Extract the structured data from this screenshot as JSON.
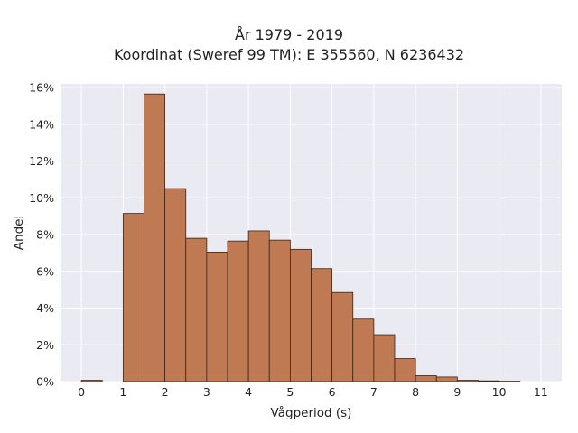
{
  "chart_data": {
    "type": "bar",
    "title": "År 1979 - 2019",
    "subtitle": "Koordinat (Sweref 99 TM): E 355560, N 6236432",
    "xlabel": "Vågperiod (s)",
    "ylabel": "Andel",
    "xlim": [
      -0.5,
      11.5
    ],
    "ylim": [
      0,
      16.2
    ],
    "xticks": [
      0,
      1,
      2,
      3,
      4,
      5,
      6,
      7,
      8,
      9,
      10,
      11
    ],
    "yticks": [
      0,
      2,
      4,
      6,
      8,
      10,
      12,
      14,
      16
    ],
    "ytick_labels": [
      "0%",
      "2%",
      "4%",
      "6%",
      "8%",
      "10%",
      "12%",
      "14%",
      "16%"
    ],
    "bin_width": 0.5,
    "bins_start": [
      0,
      1,
      1.5,
      2,
      2.5,
      3,
      3.5,
      4,
      4.5,
      5,
      5.5,
      6,
      6.5,
      7,
      7.5,
      8,
      8.5,
      9,
      9.5,
      10
    ],
    "values": [
      0.07,
      9.15,
      15.65,
      10.5,
      7.8,
      7.05,
      7.65,
      8.2,
      7.7,
      7.2,
      6.15,
      4.85,
      3.4,
      2.55,
      1.25,
      0.32,
      0.25,
      0.07,
      0.04,
      0.02
    ],
    "grid": true,
    "bar_color": "#c07a53",
    "edge_color": "#3b2418",
    "background_color": "#e9eaf2"
  }
}
